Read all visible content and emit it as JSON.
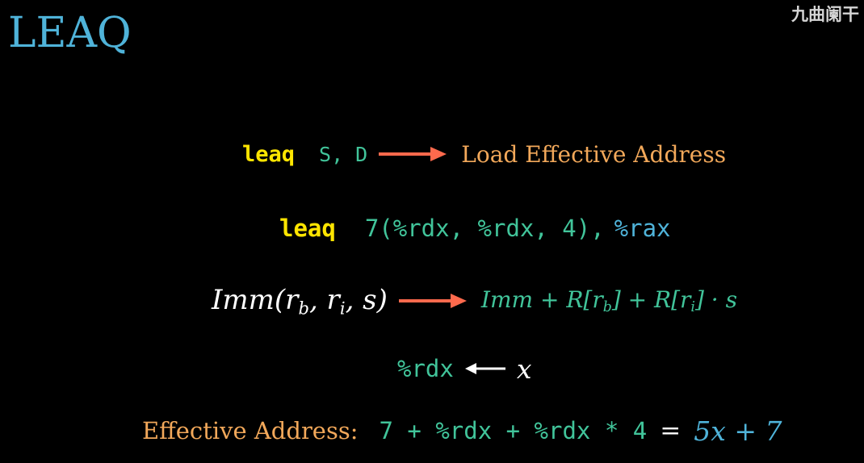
{
  "title": "LEAQ",
  "watermark": "九曲阑干",
  "colors": {
    "background": "#000000",
    "title": "#4fb3d9",
    "keyword": "#ffe500",
    "operand": "#41c49a",
    "label": "#f2a85a",
    "arrow": "#ff6a4d",
    "text": "#ffffff"
  },
  "row1": {
    "keyword": "leaq",
    "operands": "S, D",
    "description": "Load Effective Address"
  },
  "row2": {
    "keyword": "leaq",
    "source": "7(%rdx, %rdx, 4),",
    "destination": "%rax"
  },
  "row3": {
    "lhs_prefix": "Imm(r",
    "lhs_sub_b": "b",
    "lhs_mid": ", r",
    "lhs_sub_i": "i",
    "lhs_suffix": ", s)",
    "rhs_prefix": "Imm + R[r",
    "rhs_sub_b": "b",
    "rhs_mid": "] + R[r",
    "rhs_sub_i": "i",
    "rhs_suffix": "] · s"
  },
  "row4": {
    "register": "%rdx",
    "variable": "x"
  },
  "row5": {
    "label": "Effective Address:",
    "expression": "7 + %rdx + %rdx * 4",
    "equals": "=",
    "result": "5x + 7"
  }
}
